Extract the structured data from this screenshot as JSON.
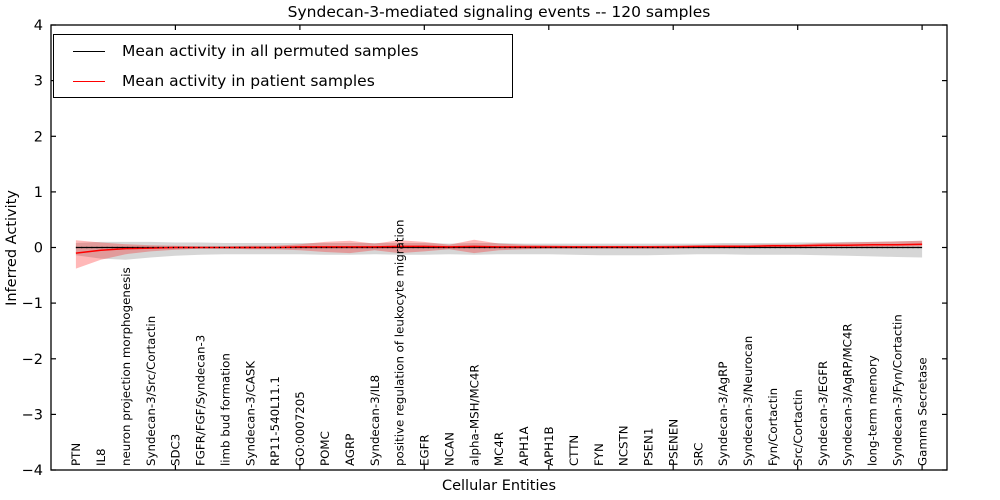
{
  "figure": {
    "title": "Syndecan-3-mediated signaling events -- 120 samples",
    "xlabel": "Cellular Entities",
    "ylabel": "Inferred Activity"
  },
  "legend": {
    "entries": [
      {
        "label": "Mean activity in all permuted samples",
        "color": "#000000"
      },
      {
        "label": "Mean activity in patient samples",
        "color": "#ff0000"
      }
    ]
  },
  "chart_data": {
    "type": "line",
    "title": "Syndecan-3-mediated signaling events -- 120 samples",
    "xlabel": "Cellular Entities",
    "ylabel": "Inferred Activity",
    "ylim": [
      -4,
      4
    ],
    "yticks": [
      -4,
      -3,
      -2,
      -1,
      0,
      1,
      2,
      3,
      4
    ],
    "xlim": [
      0,
      36
    ],
    "xticks": [
      5,
      10,
      15,
      20,
      25,
      30,
      35
    ],
    "grid": false,
    "legend_position": "upper left",
    "zero_line": {
      "y": 0,
      "style": "dotted",
      "color": "#000000"
    },
    "categories": [
      "PTN",
      "IL8",
      "neuron projection morphogenesis",
      "Syndecan-3/Src/Cortactin",
      "SDC3",
      "FGFR/FGF/Syndecan-3",
      "limb bud formation",
      "Syndecan-3/CASK",
      "RP11-540L11.1",
      "GO:0007205",
      "POMC",
      "AGRP",
      "Syndecan-3/IL8",
      "positive regulation of leukocyte migration",
      "EGFR",
      "NCAN",
      "alpha-MSH/MC4R",
      "MC4R",
      "APH1A",
      "APH1B",
      "CTTN",
      "FYN",
      "NCSTN",
      "PSEN1",
      "PSENEN",
      "SRC",
      "Syndecan-3/AgRP",
      "Syndecan-3/Neurocan",
      "Fyn/Cortactin",
      "Src/Cortactin",
      "Syndecan-3/EGFR",
      "Syndecan-3/AgRP/MC4R",
      "long-term memory",
      "Syndecan-3/Fyn/Cortactin",
      "Gamma Secretase"
    ],
    "series": [
      {
        "name": "Mean activity in all permuted samples",
        "color": "#000000",
        "values": [
          0,
          0,
          0,
          0,
          0,
          0,
          0,
          0,
          0,
          0,
          0,
          0,
          0,
          0,
          0,
          0,
          0,
          0,
          0,
          0,
          0,
          0,
          0,
          0,
          0,
          0,
          0,
          0,
          0,
          0,
          0,
          0,
          0,
          0,
          0
        ]
      },
      {
        "name": "Mean activity in patient samples",
        "color": "#ff0000",
        "values": [
          -0.1,
          -0.05,
          -0.02,
          -0.01,
          0,
          0,
          0,
          0,
          0,
          0.01,
          0.01,
          0.01,
          0.01,
          0.02,
          0.02,
          0.01,
          0.02,
          0.01,
          0.01,
          0.01,
          0.01,
          0.01,
          0.01,
          0.01,
          0.01,
          0.02,
          0.02,
          0.02,
          0.03,
          0.03,
          0.04,
          0.04,
          0.05,
          0.05,
          0.06
        ]
      }
    ],
    "bands": [
      {
        "name": "permuted-activity-range",
        "color": "#999999",
        "opacity": 0.4,
        "upper": [
          0.08,
          0.1,
          0.1,
          0.1,
          0.09,
          0.09,
          0.08,
          0.08,
          0.08,
          0.08,
          0.08,
          0.08,
          0.08,
          0.08,
          0.08,
          0.07,
          0.08,
          0.08,
          0.07,
          0.07,
          0.07,
          0.07,
          0.07,
          0.07,
          0.07,
          0.07,
          0.08,
          0.08,
          0.08,
          0.09,
          0.09,
          0.1,
          0.1,
          0.11,
          0.12
        ],
        "lower": [
          -0.14,
          -0.2,
          -0.22,
          -0.18,
          -0.15,
          -0.13,
          -0.12,
          -0.12,
          -0.12,
          -0.12,
          -0.13,
          -0.13,
          -0.12,
          -0.13,
          -0.13,
          -0.12,
          -0.13,
          -0.12,
          -0.12,
          -0.12,
          -0.13,
          -0.14,
          -0.14,
          -0.14,
          -0.13,
          -0.12,
          -0.12,
          -0.13,
          -0.13,
          -0.13,
          -0.14,
          -0.15,
          -0.16,
          -0.17,
          -0.18
        ]
      },
      {
        "name": "patient-activity-range",
        "color": "#ff0000",
        "opacity": 0.28,
        "upper": [
          0.13,
          0.09,
          0.06,
          0.04,
          0.03,
          0.02,
          0.02,
          0.03,
          0.03,
          0.06,
          0.1,
          0.12,
          0.07,
          0.13,
          0.1,
          0.05,
          0.14,
          0.07,
          0.05,
          0.04,
          0.03,
          0.03,
          0.03,
          0.03,
          0.04,
          0.04,
          0.05,
          0.05,
          0.06,
          0.06,
          0.08,
          0.09,
          0.1,
          0.11,
          0.12
        ],
        "lower": [
          -0.38,
          -0.22,
          -0.12,
          -0.07,
          -0.04,
          -0.02,
          -0.02,
          -0.03,
          -0.03,
          -0.05,
          -0.08,
          -0.1,
          -0.05,
          -0.1,
          -0.07,
          -0.03,
          -0.1,
          -0.05,
          -0.03,
          -0.02,
          -0.02,
          -0.02,
          -0.02,
          -0.02,
          -0.02,
          -0.01,
          -0.01,
          -0.01,
          0,
          0,
          0.01,
          0.01,
          0.01,
          0.02,
          0.02
        ]
      }
    ]
  }
}
